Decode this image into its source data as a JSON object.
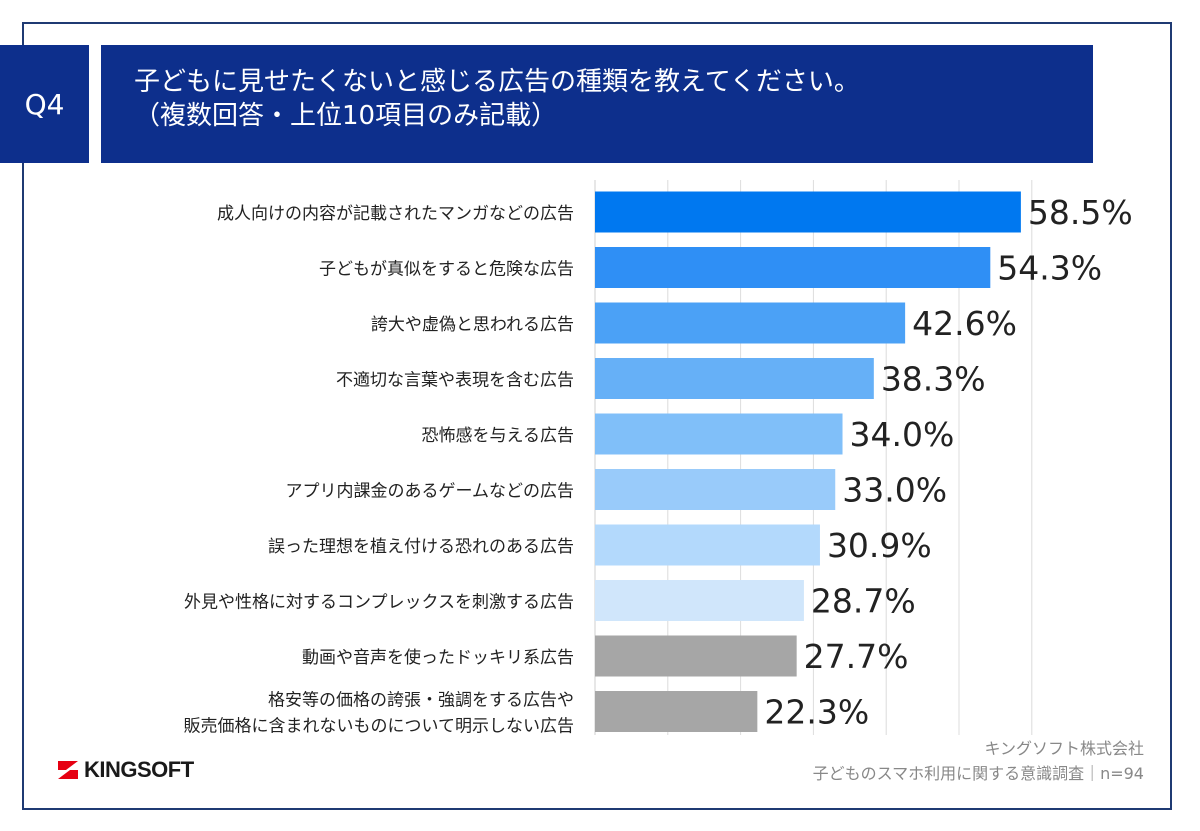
{
  "question": {
    "number": "Q4",
    "title_line1": "子どもに見せたくないと感じる広告の種類を教えてください。",
    "title_line2": "（複数回答・上位10項目のみ記載）"
  },
  "chart_data": {
    "type": "bar",
    "orientation": "horizontal",
    "categories": [
      [
        "成人向けの内容が記載されたマンガなどの広告"
      ],
      [
        "子どもが真似をすると危険な広告"
      ],
      [
        "誇大や虚偽と思われる広告"
      ],
      [
        "不適切な言葉や表現を含む広告"
      ],
      [
        "恐怖感を与える広告"
      ],
      [
        "アプリ内課金のあるゲームなどの広告"
      ],
      [
        "誤った理想を植え付ける恐れのある広告"
      ],
      [
        "外見や性格に対するコンプレックスを刺激する広告"
      ],
      [
        "動画や音声を使ったドッキリ系広告"
      ],
      [
        "格安等の価格の誇張・強調をする広告や",
        "販売価格に含まれないものについて明示しない広告"
      ]
    ],
    "values": [
      58.5,
      54.3,
      42.6,
      38.3,
      34.0,
      33.0,
      30.9,
      28.7,
      27.7,
      22.3
    ],
    "value_labels": [
      "58.5%",
      "54.3%",
      "42.6%",
      "38.3%",
      "34.0%",
      "33.0%",
      "30.9%",
      "28.7%",
      "27.7%",
      "22.3%"
    ],
    "bar_colors": [
      "#0078f0",
      "#2f8ff5",
      "#4ba1f6",
      "#66b0f7",
      "#80bff9",
      "#99cbfa",
      "#b3d9fc",
      "#d0e6fb",
      "#a6a6a6",
      "#a6a6a6"
    ],
    "xlim": [
      0,
      60
    ],
    "grid": true,
    "xlabel": "",
    "ylabel": ""
  },
  "footer": {
    "brand": "KINGSOFT",
    "brand_color": "#e60012",
    "source_line1": "キングソフト株式会社",
    "source_line2": "子どものスマホ利用に関する意識調査｜n=94"
  }
}
